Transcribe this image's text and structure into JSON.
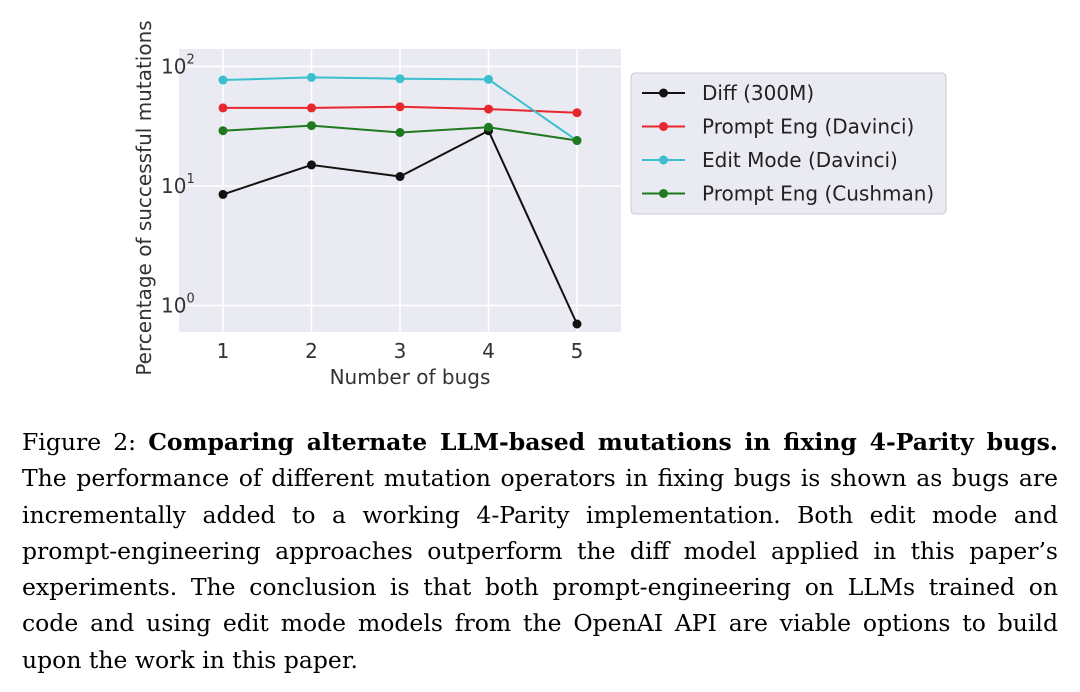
{
  "chart_data": {
    "type": "line",
    "xlabel": "Number of bugs",
    "ylabel": "Percentage of successful mutations",
    "x": [
      1,
      2,
      3,
      4,
      5
    ],
    "x_ticks": [
      "1",
      "2",
      "3",
      "4",
      "5"
    ],
    "y_scale": "log",
    "ylim": [
      0.6,
      140
    ],
    "y_ticks": [
      {
        "value": 1,
        "base": "10",
        "exp": "0"
      },
      {
        "value": 10,
        "base": "10",
        "exp": "1"
      },
      {
        "value": 100,
        "base": "10",
        "exp": "2"
      }
    ],
    "grid": true,
    "legend_position": "outside right",
    "series": [
      {
        "name": "Diff (300M)",
        "color": "#111111",
        "values": [
          8.5,
          15,
          12,
          29,
          0.7
        ]
      },
      {
        "name": "Prompt Eng (Davinci)",
        "color": "#e8262d",
        "values": [
          45,
          45,
          46,
          44,
          41
        ]
      },
      {
        "name": "Edit Mode (Davinci)",
        "color": "#3bbfcf",
        "values": [
          77,
          81,
          79,
          78,
          24
        ]
      },
      {
        "name": "Prompt Eng (Cushman)",
        "color": "#1f7a1f",
        "values": [
          29,
          32,
          28,
          31,
          24
        ]
      }
    ]
  },
  "caption": {
    "label": "Figure 2:",
    "title": "Comparing alternate LLM-based mutations in fixing 4-Parity bugs.",
    "body": "The performance of different mutation operators in fixing bugs is shown as bugs are incrementally added to a working 4-Parity implementation. Both edit mode and prompt-engineering approaches outperform the diff model applied in this paper’s experiments. The conclusion is that both prompt-engineering on LLMs trained on code and using edit mode models from the OpenAI API are viable options to build upon the work in this paper."
  }
}
